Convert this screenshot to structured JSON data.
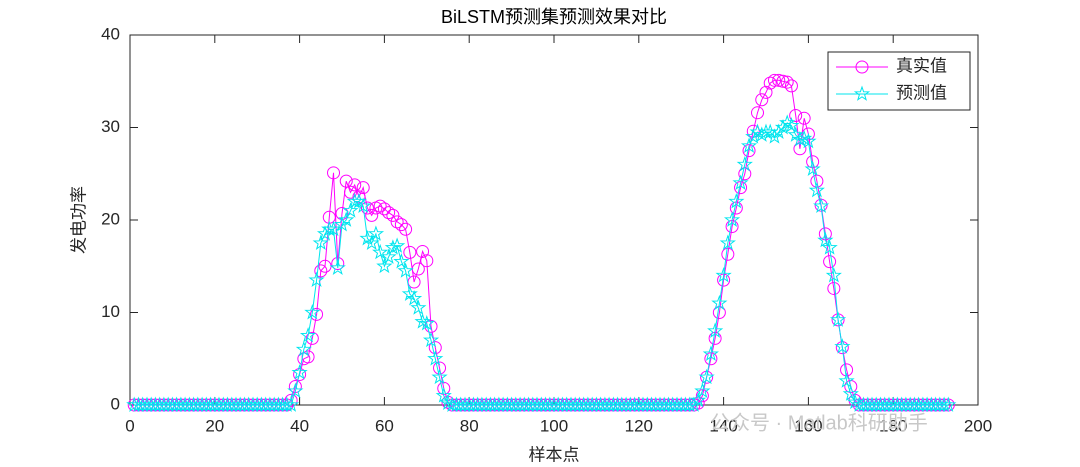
{
  "chart_data": {
    "type": "line",
    "title": "BiLSTM预测集预测效果对比",
    "xlabel": "样本点",
    "ylabel": "发电功率",
    "watermark": "公众号 · Matlab科研助手",
    "x": [
      1,
      2,
      3,
      4,
      5,
      6,
      7,
      8,
      9,
      10,
      11,
      12,
      13,
      14,
      15,
      16,
      17,
      18,
      19,
      20,
      21,
      22,
      23,
      24,
      25,
      26,
      27,
      28,
      29,
      30,
      31,
      32,
      33,
      34,
      35,
      36,
      37,
      38,
      39,
      40,
      41,
      42,
      43,
      44,
      45,
      46,
      47,
      48,
      49,
      50,
      51,
      52,
      53,
      54,
      55,
      56,
      57,
      58,
      59,
      60,
      61,
      62,
      63,
      64,
      65,
      66,
      67,
      68,
      69,
      70,
      71,
      72,
      73,
      74,
      75,
      76,
      77,
      78,
      79,
      80,
      81,
      82,
      83,
      84,
      85,
      86,
      87,
      88,
      89,
      90,
      91,
      92,
      93,
      94,
      95,
      96,
      97,
      98,
      99,
      100,
      101,
      102,
      103,
      104,
      105,
      106,
      107,
      108,
      109,
      110,
      111,
      112,
      113,
      114,
      115,
      116,
      117,
      118,
      119,
      120,
      121,
      122,
      123,
      124,
      125,
      126,
      127,
      128,
      129,
      130,
      131,
      132,
      133,
      134,
      135,
      136,
      137,
      138,
      139,
      140,
      141,
      142,
      143,
      144,
      145,
      146,
      147,
      148,
      149,
      150,
      151,
      152,
      153,
      154,
      155,
      156,
      157,
      158,
      159,
      160,
      161,
      162,
      163,
      164,
      165,
      166,
      167,
      168,
      169,
      170,
      171,
      172,
      173,
      174,
      175,
      176,
      177,
      178,
      179,
      180,
      181,
      182,
      183,
      184,
      185,
      186,
      187,
      188,
      189,
      190,
      191,
      192,
      193
    ],
    "series": [
      {
        "name": "真实值",
        "color": "#ff00ff",
        "marker": "circle",
        "values": [
          0,
          0,
          0,
          0,
          0,
          0,
          0,
          0,
          0,
          0,
          0,
          0,
          0,
          0,
          0,
          0,
          0,
          0,
          0,
          0,
          0,
          0,
          0,
          0,
          0,
          0,
          0,
          0,
          0,
          0,
          0,
          0,
          0,
          0,
          0,
          0,
          0,
          0.5,
          2,
          3.3,
          5,
          5.2,
          7.2,
          9.8,
          14.5,
          15,
          20.3,
          25.1,
          15.3,
          20.7,
          24.2,
          23,
          23.8,
          22.5,
          23.5,
          21.3,
          20.5,
          21.3,
          21.5,
          21.2,
          20.8,
          20.5,
          19.8,
          19.5,
          19,
          16.5,
          13.3,
          14.7,
          16.6,
          15.6,
          8.5,
          6.2,
          4,
          1.8,
          0.3,
          0,
          0,
          0,
          0,
          0,
          0,
          0,
          0,
          0,
          0,
          0,
          0,
          0,
          0,
          0,
          0,
          0,
          0,
          0,
          0,
          0,
          0,
          0,
          0,
          0,
          0,
          0,
          0,
          0,
          0,
          0,
          0,
          0,
          0,
          0,
          0,
          0,
          0,
          0,
          0,
          0,
          0,
          0,
          0,
          0,
          0,
          0,
          0,
          0,
          0,
          0,
          0,
          0,
          0,
          0,
          0,
          0,
          0,
          0.2,
          1,
          3,
          5,
          7.2,
          10,
          13.5,
          16.3,
          19.3,
          21.3,
          23.5,
          25,
          27.5,
          29.6,
          31.6,
          33,
          33.8,
          34.8,
          35.1,
          35.1,
          35,
          34.9,
          34.5,
          31.3,
          27.7,
          31,
          29.3,
          26.3,
          24.2,
          21.6,
          18.5,
          15.5,
          12.6,
          9.2,
          6.2,
          3.8,
          2,
          0.5,
          0,
          0,
          0,
          0,
          0,
          0,
          0,
          0,
          0,
          0,
          0,
          0,
          0,
          0,
          0,
          0,
          0,
          0,
          0,
          0,
          0,
          0
        ]
      },
      {
        "name": "预测值",
        "color": "#00e5ee",
        "marker": "star",
        "values": [
          0,
          0,
          0,
          0,
          0,
          0,
          0,
          0,
          0,
          0,
          0,
          0,
          0,
          0,
          0,
          0,
          0,
          0,
          0,
          0,
          0,
          0,
          0,
          0,
          0,
          0,
          0,
          0,
          0,
          0,
          0,
          0,
          0,
          0,
          0,
          0,
          0,
          0,
          1.5,
          3.5,
          6,
          7.5,
          10,
          13.5,
          17.5,
          18.5,
          19,
          19,
          14.8,
          19.5,
          20,
          21,
          22,
          22,
          21.5,
          18,
          17.5,
          18.5,
          16.5,
          15,
          16,
          17,
          17.2,
          15.5,
          14.5,
          12,
          11.5,
          10.5,
          9,
          8.8,
          7,
          5,
          3,
          1,
          0.2,
          0,
          0,
          0,
          0,
          0,
          0,
          0,
          0,
          0,
          0,
          0,
          0,
          0,
          0,
          0,
          0,
          0,
          0,
          0,
          0,
          0,
          0,
          0,
          0,
          0,
          0,
          0,
          0,
          0,
          0,
          0,
          0,
          0,
          0,
          0,
          0,
          0,
          0,
          0,
          0,
          0,
          0,
          0,
          0,
          0,
          0,
          0,
          0,
          0,
          0,
          0,
          0,
          0,
          0,
          0,
          0,
          0,
          0,
          0.5,
          1.5,
          3,
          5.5,
          8,
          11,
          14,
          17.5,
          20,
          22,
          24,
          26,
          28,
          29,
          29.5,
          29.2,
          29.5,
          29.5,
          29,
          29.5,
          30,
          30.5,
          30.2,
          29.2,
          28.7,
          28.8,
          28.5,
          25.5,
          23.2,
          21.5,
          17.8,
          17,
          14,
          9.2,
          6.3,
          2.6,
          1.2,
          0.3,
          0,
          0,
          0,
          0,
          0,
          0,
          0,
          0,
          0,
          0,
          0,
          0,
          0,
          0,
          0,
          0,
          0,
          0,
          0,
          0,
          0,
          0
        ]
      }
    ],
    "xlim": [
      0,
      200
    ],
    "xticks": [
      0,
      20,
      40,
      60,
      80,
      100,
      120,
      140,
      160,
      180,
      200
    ],
    "ylim": [
      0,
      40
    ],
    "yticks": [
      0,
      10,
      20,
      30,
      40
    ],
    "legend": "northeast"
  }
}
